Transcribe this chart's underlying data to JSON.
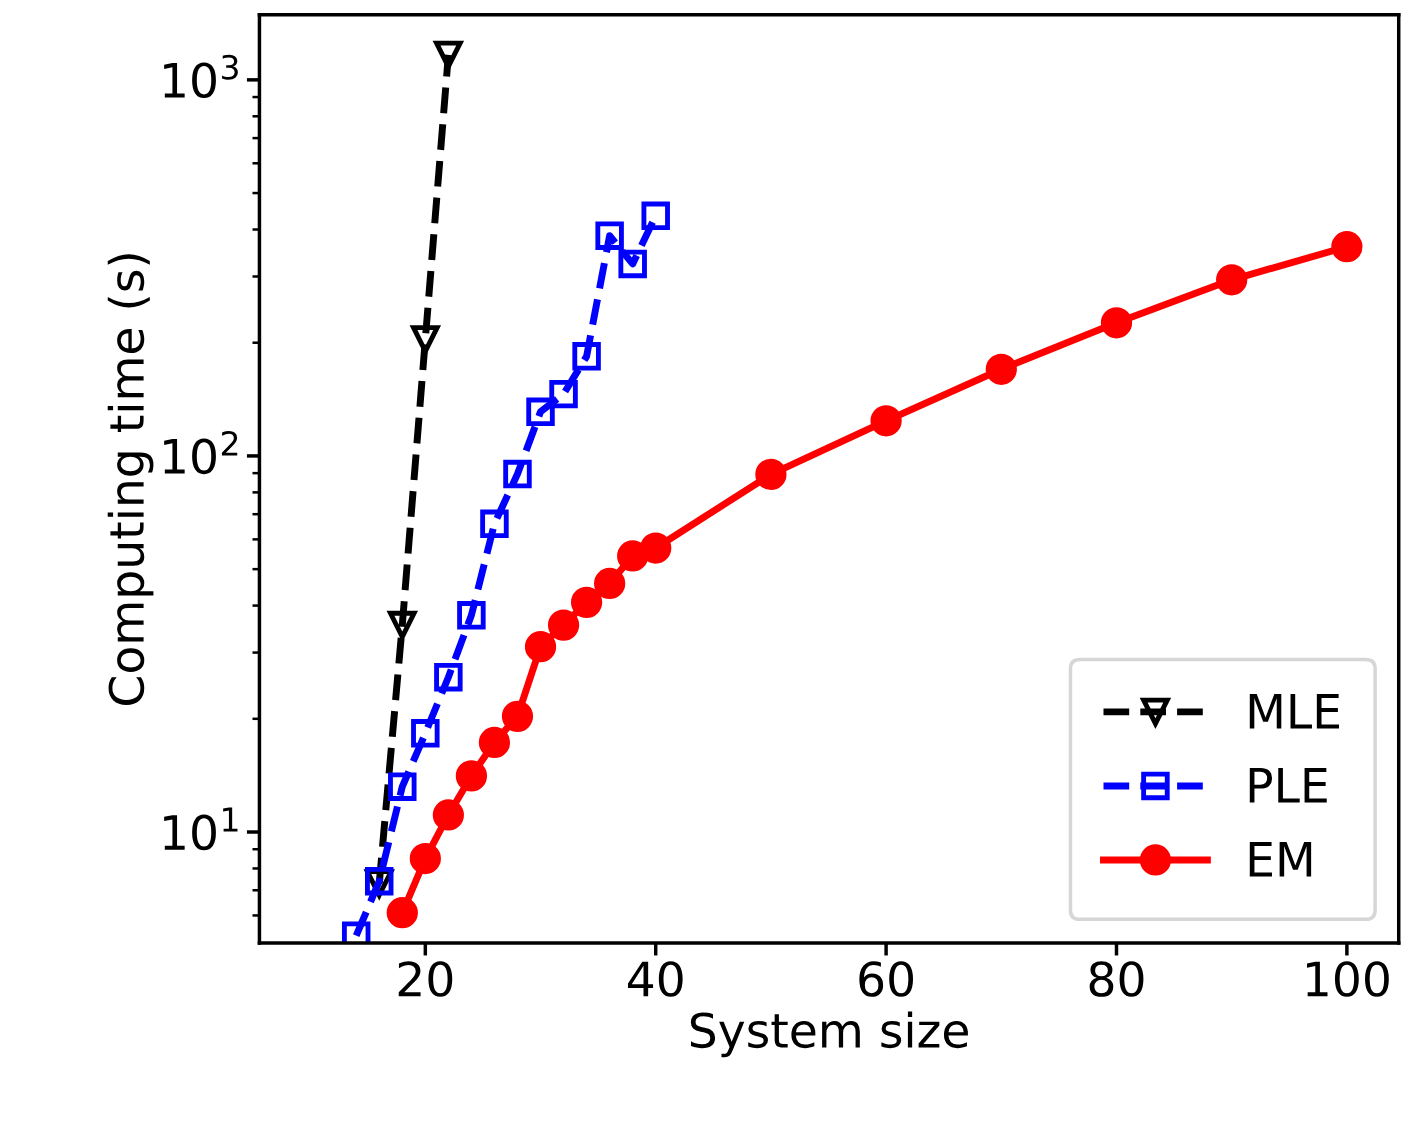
{
  "chart_data": {
    "type": "line",
    "xlabel": "System size",
    "ylabel": "Computing time (s)",
    "log": "y",
    "xlim": [
      5.6,
      104.5
    ],
    "ylim": [
      5.07,
      1490
    ],
    "xticks": [
      20,
      40,
      60,
      80,
      100
    ],
    "yticks": [
      {
        "value": 10,
        "label": "10$^{1}$"
      },
      {
        "value": 100,
        "label": "10$^{2}$"
      },
      {
        "value": 1000,
        "label": "10$^{3}$"
      }
    ],
    "grid": false,
    "legend": "bottom right",
    "series": [
      {
        "name": "MLE",
        "color": "#000000",
        "marker": "triangle",
        "line_style": "dashed",
        "x": [
          16,
          18,
          20,
          22
        ],
        "values": [
          7.3,
          35.5,
          204,
          1165
        ]
      },
      {
        "name": "PLE",
        "color": "#0000ff",
        "marker": "square",
        "line_style": "dashed",
        "x": [
          14,
          16,
          18,
          20,
          22,
          24,
          26,
          28,
          30,
          32,
          34,
          36,
          38,
          40
        ],
        "values": [
          5.3,
          7.4,
          13.2,
          18.3,
          25.8,
          37.7,
          66,
          89.5,
          131,
          146,
          184,
          385,
          324,
          435
        ]
      },
      {
        "name": "EM",
        "color": "#ff0000",
        "marker": "circle",
        "line_style": "solid",
        "x": [
          18,
          20,
          22,
          24,
          26,
          28,
          30,
          32,
          34,
          36,
          38,
          40,
          50,
          60,
          70,
          80,
          90,
          100
        ],
        "values": [
          6.1,
          8.5,
          11.1,
          14.1,
          17.3,
          20.3,
          31.1,
          35.5,
          40.8,
          45.8,
          54.2,
          56.9,
          89.3,
          124,
          170,
          226,
          294,
          360
        ]
      }
    ]
  }
}
